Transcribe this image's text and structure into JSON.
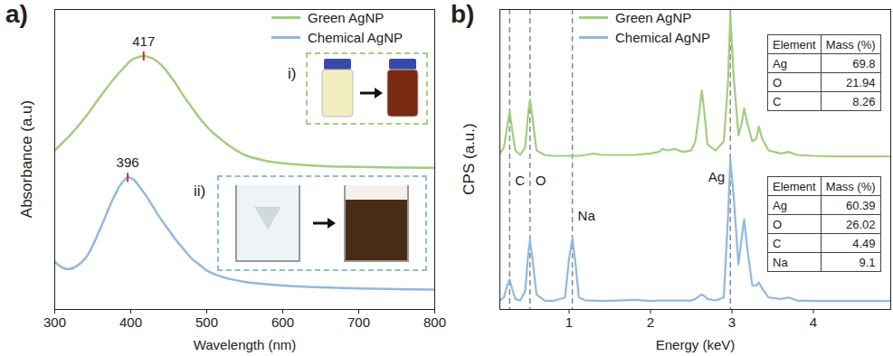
{
  "chart_data": [
    {
      "type": "line",
      "panel_label": "a)",
      "x_label": "Wavelength (nm)",
      "y_label": "Absorbance (a.u)",
      "x": [
        300,
        310,
        320,
        340,
        360,
        375,
        380,
        385,
        396,
        400,
        405,
        417,
        420,
        430,
        440,
        450,
        460,
        470,
        480,
        490,
        500,
        510,
        525,
        530,
        550,
        575,
        600,
        650,
        700,
        750,
        800
      ],
      "series": [
        {
          "name": "Green AgNP",
          "color": "#a3cd7f",
          "values": [
            0.53,
            0.555,
            0.58,
            0.64,
            0.71,
            0.76,
            0.775,
            0.79,
            0.82,
            0.83,
            0.837,
            0.845,
            0.844,
            0.835,
            0.815,
            0.785,
            0.75,
            0.71,
            0.675,
            0.64,
            0.61,
            0.585,
            0.555,
            0.545,
            0.515,
            0.497,
            0.487,
            0.478,
            0.475,
            0.473,
            0.472
          ]
        },
        {
          "name": "Chemical AgNP",
          "color": "#92b9dc",
          "values": [
            0.16,
            0.14,
            0.135,
            0.17,
            0.27,
            0.36,
            0.385,
            0.41,
            0.44,
            0.438,
            0.43,
            0.39,
            0.38,
            0.34,
            0.3,
            0.265,
            0.23,
            0.2,
            0.17,
            0.15,
            0.13,
            0.118,
            0.105,
            0.102,
            0.092,
            0.085,
            0.08,
            0.074,
            0.07,
            0.068,
            0.066
          ]
        }
      ],
      "xlim": [
        300,
        800
      ],
      "xticks": [
        300,
        400,
        500,
        600,
        700,
        800
      ],
      "ylim": [
        0,
        1
      ],
      "tick_labels": "x",
      "legend": "top-right",
      "peak_labels": [
        {
          "label": "417",
          "x": 417,
          "y": 0.845
        },
        {
          "label": "396",
          "x": 396,
          "y": 0.44
        }
      ],
      "insets": [
        {
          "label": "i)",
          "series": "Green AgNP"
        },
        {
          "label": "ii)",
          "series": "Chemical AgNP"
        }
      ]
    },
    {
      "type": "line",
      "panel_label": "b)",
      "x_label": "Energy (keV)",
      "y_label": "CPS (a.u.)",
      "x": [
        0.15,
        0.2,
        0.24,
        0.27,
        0.3,
        0.34,
        0.4,
        0.46,
        0.5,
        0.52,
        0.55,
        0.6,
        0.7,
        0.8,
        0.95,
        1.0,
        1.04,
        1.08,
        1.12,
        1.2,
        1.3,
        1.4,
        1.6,
        1.8,
        2.0,
        2.1,
        2.15,
        2.2,
        2.3,
        2.4,
        2.5,
        2.55,
        2.6,
        2.63,
        2.66,
        2.7,
        2.8,
        2.9,
        2.95,
        2.98,
        3.02,
        3.08,
        3.12,
        3.15,
        3.19,
        3.25,
        3.3,
        3.33,
        3.37,
        3.45,
        3.6,
        3.7,
        3.8,
        4.0,
        4.3,
        4.6,
        4.95
      ],
      "series": [
        {
          "name": "Green AgNP",
          "color": "#a3cd7f",
          "values": [
            0.52,
            0.54,
            0.61,
            0.66,
            0.6,
            0.53,
            0.515,
            0.54,
            0.66,
            0.7,
            0.64,
            0.53,
            0.515,
            0.512,
            0.512,
            0.512,
            0.513,
            0.512,
            0.512,
            0.515,
            0.52,
            0.515,
            0.515,
            0.515,
            0.52,
            0.525,
            0.535,
            0.53,
            0.535,
            0.525,
            0.53,
            0.56,
            0.66,
            0.73,
            0.66,
            0.55,
            0.53,
            0.56,
            0.75,
            0.99,
            0.78,
            0.58,
            0.62,
            0.67,
            0.62,
            0.56,
            0.57,
            0.61,
            0.57,
            0.53,
            0.52,
            0.525,
            0.515,
            0.512,
            0.51,
            0.51,
            0.51
          ]
        },
        {
          "name": "Chemical AgNP",
          "color": "#92b9dc",
          "values": [
            0.03,
            0.04,
            0.08,
            0.1,
            0.07,
            0.035,
            0.03,
            0.06,
            0.19,
            0.23,
            0.17,
            0.05,
            0.03,
            0.028,
            0.04,
            0.17,
            0.235,
            0.15,
            0.04,
            0.03,
            0.03,
            0.028,
            0.03,
            0.032,
            0.028,
            0.03,
            0.03,
            0.03,
            0.03,
            0.03,
            0.03,
            0.035,
            0.045,
            0.05,
            0.045,
            0.035,
            0.03,
            0.04,
            0.3,
            0.5,
            0.38,
            0.15,
            0.24,
            0.3,
            0.2,
            0.08,
            0.08,
            0.09,
            0.07,
            0.04,
            0.035,
            0.04,
            0.03,
            0.028,
            0.028,
            0.028,
            0.028
          ]
        }
      ],
      "xlim": [
        0.15,
        4.95
      ],
      "xticks": [
        1,
        2,
        3,
        4
      ],
      "ylim": [
        0,
        1
      ],
      "tick_labels": "x",
      "legend": "top",
      "element_lines": [
        {
          "label": "C",
          "x": 0.27,
          "label_y": 0.43
        },
        {
          "label": "O",
          "x": 0.52,
          "label_y": 0.43
        },
        {
          "label": "Na",
          "x": 1.04,
          "label_y": 0.31
        },
        {
          "label": "Ag",
          "x": 2.98,
          "label_y": 0.44
        }
      ],
      "tables": [
        {
          "series": "Green AgNP",
          "columns": [
            "Element",
            "Mass (%)"
          ],
          "rows": [
            [
              "Ag",
              69.8
            ],
            [
              "O",
              21.94
            ],
            [
              "C",
              8.26
            ]
          ]
        },
        {
          "series": "Chemical AgNP",
          "columns": [
            "Element",
            "Mass (%)"
          ],
          "rows": [
            [
              "Ag",
              60.39
            ],
            [
              "O",
              26.02
            ],
            [
              "C",
              4.49
            ],
            [
              "Na",
              9.1
            ]
          ]
        }
      ]
    }
  ]
}
